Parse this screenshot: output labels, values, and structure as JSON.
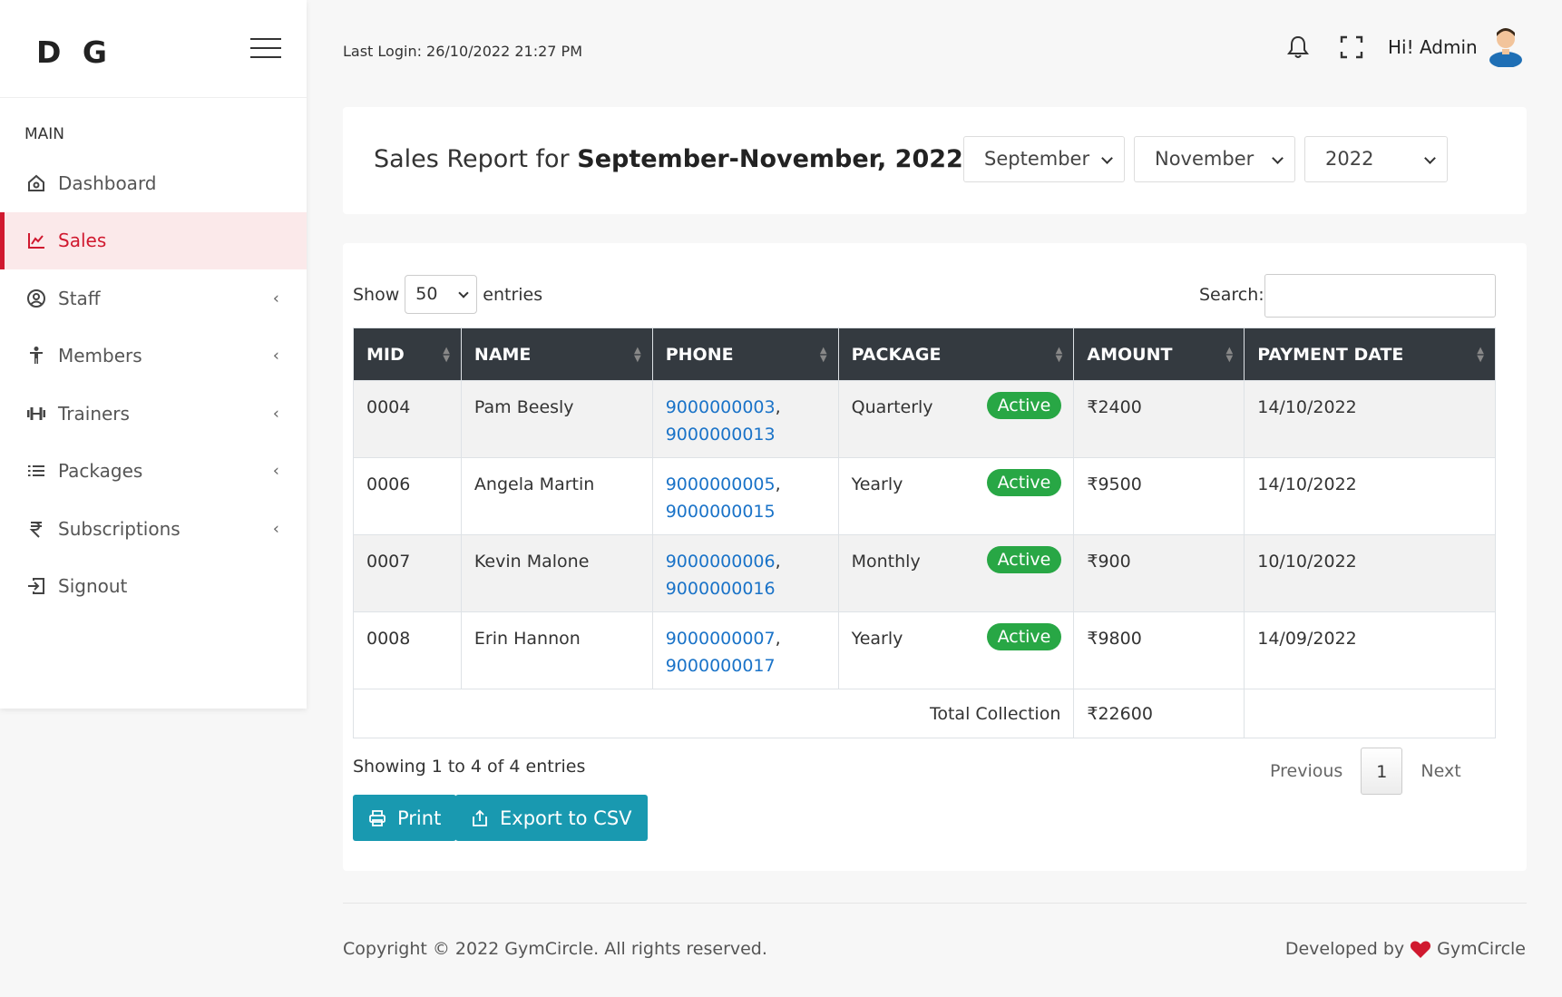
{
  "sidebar": {
    "brand": "D G",
    "section_label": "MAIN",
    "items": [
      {
        "label": "Dashboard",
        "icon": "home-icon",
        "has_submenu": false,
        "active": false
      },
      {
        "label": "Sales",
        "icon": "chart-line-icon",
        "has_submenu": false,
        "active": true
      },
      {
        "label": "Staff",
        "icon": "user-circle-icon",
        "has_submenu": true,
        "active": false
      },
      {
        "label": "Members",
        "icon": "person-icon",
        "has_submenu": true,
        "active": false
      },
      {
        "label": "Trainers",
        "icon": "dumbbell-icon",
        "has_submenu": true,
        "active": false
      },
      {
        "label": "Packages",
        "icon": "list-icon",
        "has_submenu": true,
        "active": false
      },
      {
        "label": "Subscriptions",
        "icon": "rupee-icon",
        "has_submenu": true,
        "active": false
      },
      {
        "label": "Signout",
        "icon": "signout-icon",
        "has_submenu": false,
        "active": false
      }
    ]
  },
  "header": {
    "last_login": "Last Login: 26/10/2022 21:27 PM",
    "greeting": "Hi! Admin"
  },
  "report": {
    "title_prefix": "Sales Report for ",
    "title_bold": "September-November, 2022",
    "from_month": "September",
    "to_month": "November",
    "year": "2022"
  },
  "table": {
    "show_label": "Show",
    "entries_value": "50",
    "entries_label": "entries",
    "search_label": "Search:",
    "search_value": "",
    "columns": [
      "MID",
      "NAME",
      "PHONE",
      "PACKAGE",
      "AMOUNT",
      "PAYMENT DATE"
    ],
    "rows": [
      {
        "mid": "0004",
        "name": "Pam Beesly",
        "phone1": "9000000003",
        "phone2": "9000000013",
        "package": "Quarterly",
        "status": "Active",
        "amount": "₹2400",
        "date": "14/10/2022"
      },
      {
        "mid": "0006",
        "name": "Angela Martin",
        "phone1": "9000000005",
        "phone2": "9000000015",
        "package": "Yearly",
        "status": "Active",
        "amount": "₹9500",
        "date": "14/10/2022"
      },
      {
        "mid": "0007",
        "name": "Kevin Malone",
        "phone1": "9000000006",
        "phone2": "9000000016",
        "package": "Monthly",
        "status": "Active",
        "amount": "₹900",
        "date": "10/10/2022"
      },
      {
        "mid": "0008",
        "name": "Erin Hannon",
        "phone1": "9000000007",
        "phone2": "9000000017",
        "package": "Yearly",
        "status": "Active",
        "amount": "₹9800",
        "date": "14/09/2022"
      }
    ],
    "total_label": "Total Collection",
    "total_value": "₹22600",
    "info": "Showing 1 to 4 of 4 entries",
    "pager": {
      "previous": "Previous",
      "current": "1",
      "next": "Next"
    }
  },
  "actions": {
    "print": "Print",
    "export": "Export to CSV"
  },
  "footer": {
    "copyright": "Copyright © 2022 GymCircle. All rights reserved.",
    "developed_by": "Developed by",
    "developer": "GymCircle"
  },
  "colors": {
    "accent_red": "#d0192f",
    "header_dark": "#343a40",
    "badge_green": "#28a745",
    "button_teal": "#1999b0",
    "link_blue": "#1a73c8"
  }
}
